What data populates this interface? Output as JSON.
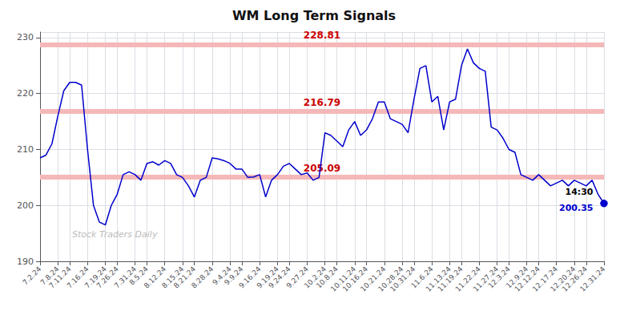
{
  "chart_data": {
    "type": "line",
    "title": "WM Long Term Signals",
    "categories": [
      "7.2.24",
      null,
      null,
      "7.8.24",
      null,
      "7.11.24",
      null,
      null,
      "7.16.24",
      null,
      null,
      "7.19.24",
      null,
      "7.26.24",
      null,
      null,
      "7.31.24",
      null,
      "8.5.24",
      null,
      null,
      "8.12.24",
      null,
      null,
      "8.15.24",
      null,
      "8.21.24",
      null,
      null,
      "8.28.24",
      null,
      null,
      "9.4.24",
      null,
      "9.9.24",
      null,
      null,
      "9.16.24",
      null,
      null,
      "9.19.24",
      null,
      "9.24.24",
      null,
      null,
      "9.27.24",
      null,
      null,
      "10.2.24",
      null,
      "10.8.24",
      null,
      null,
      "10.11.24",
      null,
      "10.16.24",
      null,
      null,
      "10.21.24",
      null,
      null,
      "10.28.24",
      null,
      "10.31.24",
      null,
      null,
      "11.6.24",
      null,
      null,
      "11.13.24",
      null,
      "11.19.24",
      null,
      null,
      "11.22.24",
      null,
      null,
      "11.27.24",
      null,
      "12.3.24",
      null,
      null,
      "12.9.24",
      null,
      "12.12.24",
      null,
      null,
      "12.17.24",
      null,
      null,
      "12.20.24",
      null,
      "12.26.24",
      null,
      null,
      "12.31.24"
    ],
    "values": [
      208.5,
      209.0,
      211.0,
      216.0,
      220.5,
      222.0,
      222.0,
      221.5,
      210.0,
      200.0,
      197.0,
      196.5,
      200.0,
      202.0,
      205.5,
      206.0,
      205.5,
      204.5,
      207.5,
      207.8,
      207.2,
      208.0,
      207.5,
      205.5,
      205.0,
      203.5,
      201.5,
      204.5,
      205.0,
      208.5,
      208.3,
      208.0,
      207.5,
      206.5,
      206.5,
      205.0,
      205.09,
      205.5,
      201.5,
      204.5,
      205.5,
      207.0,
      207.5,
      206.5,
      205.5,
      205.8,
      204.5,
      205.0,
      213.0,
      212.5,
      211.5,
      210.5,
      213.5,
      215.0,
      212.5,
      213.5,
      215.5,
      218.5,
      218.5,
      215.5,
      215.0,
      214.5,
      213.0,
      219.0,
      224.5,
      225.0,
      218.5,
      219.5,
      213.5,
      218.5,
      219.0,
      225.0,
      228.0,
      225.5,
      224.5,
      224.0,
      214.0,
      213.5,
      212.0,
      210.0,
      209.5,
      205.5,
      205.0,
      204.5,
      205.5,
      204.5,
      203.5,
      204.0,
      204.5,
      203.5,
      204.5,
      204.0,
      203.5,
      204.5,
      202.0,
      200.35
    ],
    "color": "#0000cc",
    "ylim": [
      190,
      231
    ],
    "yticks": [
      190,
      200,
      210,
      220,
      230
    ],
    "grid": true,
    "hlines": [
      {
        "y": 228.81,
        "label": "228.81",
        "color": "#f5b8b8",
        "label_color": "#cc0000"
      },
      {
        "y": 216.79,
        "label": "216.79",
        "color": "#f5b8b8",
        "label_color": "#cc0000"
      },
      {
        "y": 205.09,
        "label": "205.09",
        "color": "#f5b8b8",
        "label_color": "#cc0000"
      }
    ],
    "annotations": [
      {
        "text": "14:30",
        "x": "12.31.24",
        "y": 200.35,
        "color": "#000000"
      },
      {
        "text": "200.35",
        "x": "12.31.24",
        "y": 200.35,
        "color": "#0000cc"
      }
    ],
    "watermark": {
      "text": "Stock Traders Daily",
      "color": "#bbbbbb"
    }
  }
}
